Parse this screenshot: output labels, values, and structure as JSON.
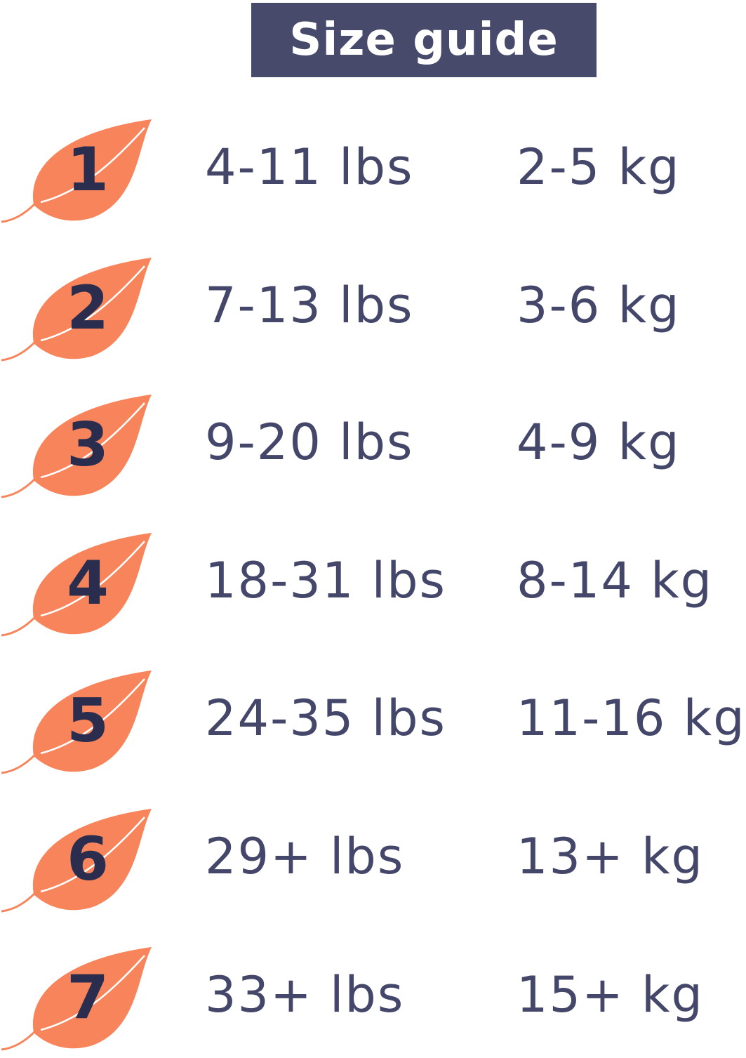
{
  "title": "Size guide",
  "colors": {
    "title_bg": "#474a6b",
    "leaf": "#f7845a",
    "number": "#2b2d4e",
    "text": "#44476a"
  },
  "sizes": [
    {
      "size": "1",
      "lbs": "4-11 lbs",
      "kg": "2-5 kg"
    },
    {
      "size": "2",
      "lbs": "7-13 lbs",
      "kg": "3-6 kg"
    },
    {
      "size": "3",
      "lbs": "9-20 lbs",
      "kg": "4-9 kg"
    },
    {
      "size": "4",
      "lbs": "18-31 lbs",
      "kg": "8-14 kg"
    },
    {
      "size": "5",
      "lbs": "24-35 lbs",
      "kg": "11-16 kg"
    },
    {
      "size": "6",
      "lbs": "29+ lbs",
      "kg": "13+ kg"
    },
    {
      "size": "7",
      "lbs": "33+ lbs",
      "kg": "15+ kg"
    }
  ]
}
